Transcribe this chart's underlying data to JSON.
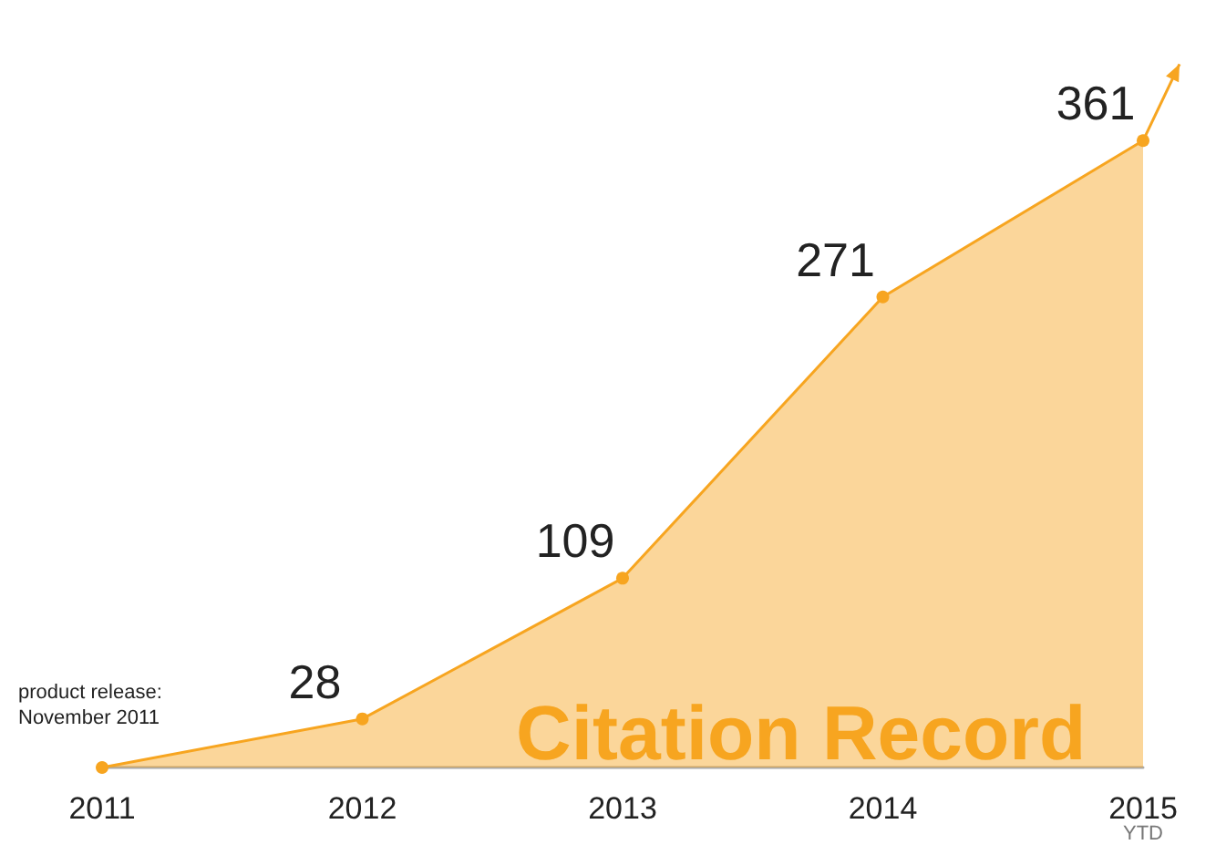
{
  "chart_data": {
    "type": "area",
    "title": "Citation Record",
    "categories": [
      "2011",
      "2012",
      "2013",
      "2014",
      "2015 YTD"
    ],
    "series": [
      {
        "color": "#f7a520",
        "values": [
          0,
          28,
          109,
          271,
          361
        ],
        "value_labels": [
          null,
          "28",
          "109",
          "271",
          "361"
        ]
      }
    ],
    "tick_labels": "x",
    "grid": false,
    "marker": "circle",
    "line_style": "solid",
    "annotations": [
      {
        "text": "product release:\nNovember 2011",
        "x": "2011",
        "y": 0
      }
    ]
  }
}
